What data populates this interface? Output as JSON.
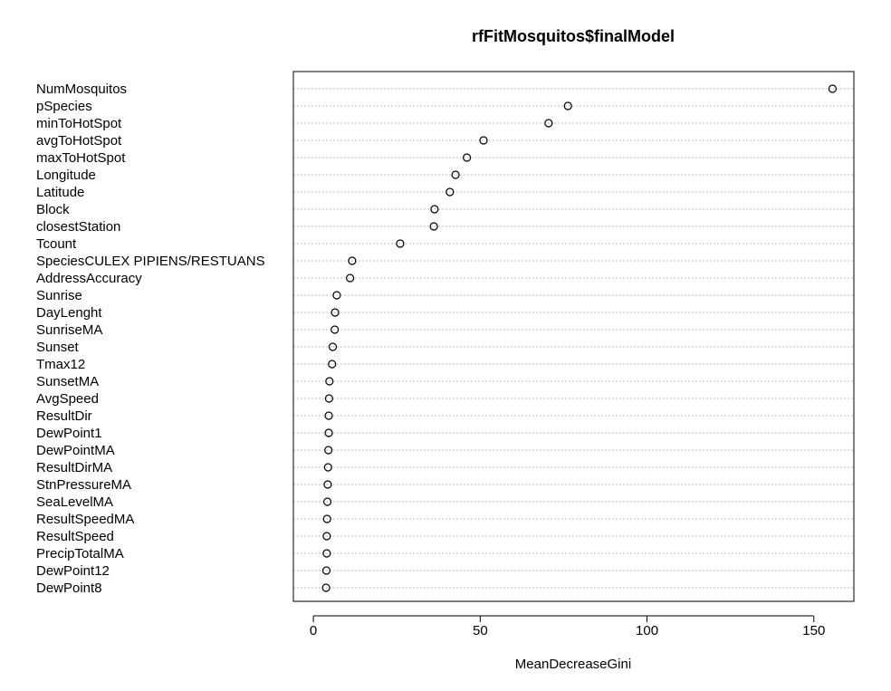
{
  "chart_data": {
    "type": "scatter",
    "title": "rfFitMosquitos$finalModel",
    "xlabel": "MeanDecreaseGini",
    "ylabel": "",
    "xlim": [
      -6,
      162
    ],
    "xticks": [
      0,
      50,
      100,
      150
    ],
    "grid": true,
    "categories": [
      "NumMosquitos",
      "pSpecies",
      "minToHotSpot",
      "avgToHotSpot",
      "maxToHotSpot",
      "Longitude",
      "Latitude",
      "Block",
      "closestStation",
      "Tcount",
      "SpeciesCULEX PIPIENS/RESTUANS",
      "AddressAccuracy",
      "Sunrise",
      "DayLenght",
      "SunriseMA",
      "Sunset",
      "Tmax12",
      "SunsetMA",
      "AvgSpeed",
      "ResultDir",
      "DewPoint1",
      "DewPointMA",
      "ResultDirMA",
      "StnPressureMA",
      "SeaLevelMA",
      "ResultSpeedMA",
      "ResultSpeed",
      "PrecipTotalMA",
      "DewPoint12",
      "DewPoint8"
    ],
    "values": [
      155.6,
      76.3,
      70.5,
      51.0,
      46.0,
      42.6,
      40.9,
      36.3,
      36.1,
      26.0,
      11.6,
      11.0,
      7.0,
      6.5,
      6.4,
      5.8,
      5.6,
      4.8,
      4.7,
      4.6,
      4.6,
      4.5,
      4.4,
      4.3,
      4.2,
      4.1,
      4.0,
      4.0,
      3.9,
      3.8
    ]
  }
}
